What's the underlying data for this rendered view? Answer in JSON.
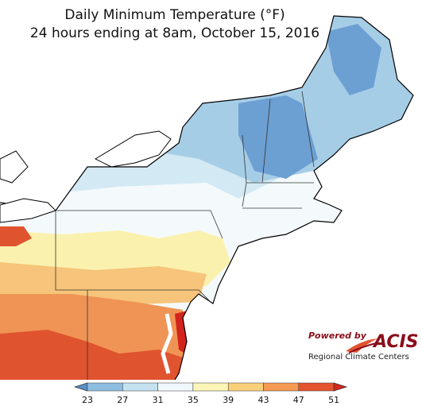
{
  "title": {
    "line1": "Daily Minimum Temperature (°F)",
    "line2": "24 hours ending at 8am, October 15, 2016"
  },
  "logo": {
    "powered_by": "Powered by",
    "name": "ACIS",
    "subtitle": "Regional Climate Centers"
  },
  "legend": {
    "ticks": [
      "23",
      "27",
      "31",
      "35",
      "39",
      "43",
      "47",
      "51"
    ],
    "colors": [
      "#5a8fc8",
      "#8dbde0",
      "#c4e2f0",
      "#f0f8fb",
      "#fdf5b8",
      "#f9d07a",
      "#f49a52",
      "#e4542f",
      "#d7261f"
    ]
  },
  "map": {
    "colors": {
      "cold": "#6c9fd2",
      "cool": "#a6cde6",
      "cool_light": "#d3e9f4",
      "neutral": "#f4fafc",
      "mild": "#fbf1ae",
      "warm": "#f6c47a",
      "warmer": "#ef9455",
      "hot": "#e0532f",
      "hottest": "#d2231c",
      "water": "#ffffff"
    }
  }
}
